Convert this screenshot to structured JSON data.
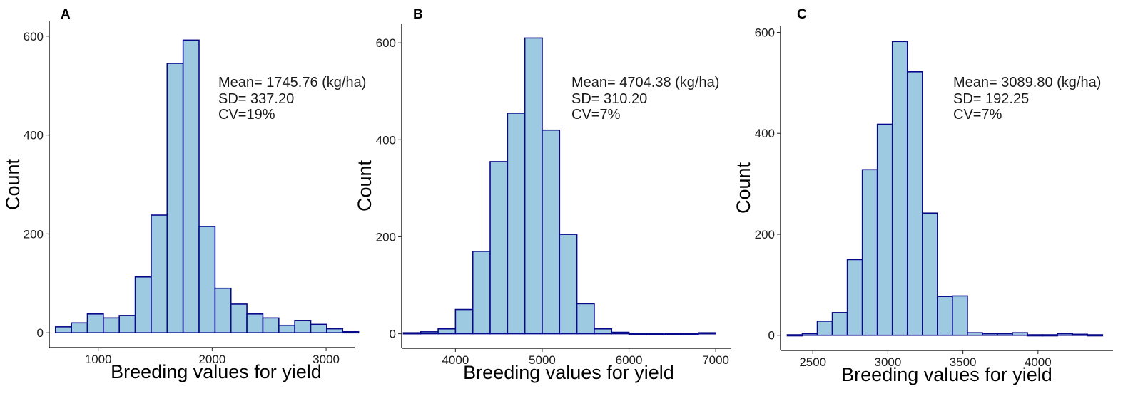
{
  "colors": {
    "bar_fill": "#9ecae1",
    "bar_stroke": "#08088a"
  },
  "chart_data": [
    {
      "type": "bar",
      "panel": "A",
      "xlabel": "Breeding values for yield",
      "ylabel": "Count",
      "annotations": [
        "Mean= 1745.76 (kg/ha)",
        "SD= 337.20",
        "CV=19%"
      ],
      "xlim": [
        570,
        3250
      ],
      "ylim": [
        -30,
        630
      ],
      "xticks": [
        1000,
        2000,
        3000
      ],
      "yticks": [
        0,
        200,
        400,
        600
      ],
      "bin_width": 140,
      "bin_starts": [
        625,
        765,
        905,
        1045,
        1185,
        1325,
        1465,
        1605,
        1745,
        1885,
        2025,
        2165,
        2305,
        2445,
        2585,
        2725,
        2865,
        3005,
        3145
      ],
      "values": [
        12,
        20,
        38,
        30,
        35,
        113,
        238,
        545,
        592,
        215,
        90,
        58,
        38,
        30,
        15,
        25,
        17,
        8,
        2
      ]
    },
    {
      "type": "bar",
      "panel": "B",
      "xlabel": "Breeding values for yield",
      "ylabel": "Count",
      "annotations": [
        "Mean= 4704.38 (kg/ha)",
        "SD= 310.20",
        "CV=7%"
      ],
      "xlim": [
        3380,
        7180
      ],
      "ylim": [
        -30,
        640
      ],
      "xticks": [
        4000,
        5000,
        6000,
        7000
      ],
      "yticks": [
        0,
        200,
        400,
        600
      ],
      "bin_width": 200,
      "bin_starts": [
        3400,
        3600,
        3800,
        4000,
        4200,
        4400,
        4600,
        4800,
        5000,
        5200,
        5400,
        5600,
        5800,
        6000,
        6200,
        6400,
        6600,
        6800
      ],
      "values": [
        2,
        4,
        10,
        50,
        170,
        355,
        455,
        610,
        420,
        205,
        62,
        10,
        3,
        1,
        1,
        0,
        0,
        2
      ]
    },
    {
      "type": "bar",
      "panel": "C",
      "xlabel": "Breeding values for yield",
      "ylabel": "Count",
      "annotations": [
        "Mean= 3089.80 (kg/ha)",
        "SD= 192.25",
        "CV=7%"
      ],
      "xlim": [
        2285,
        4500
      ],
      "ylim": [
        -30,
        612
      ],
      "xticks": [
        2500,
        3000,
        3500,
        4000
      ],
      "yticks": [
        0,
        200,
        400,
        600
      ],
      "bin_width": 100,
      "bin_starts": [
        2330,
        2430,
        2530,
        2630,
        2730,
        2830,
        2930,
        3030,
        3130,
        3230,
        3330,
        3430,
        3530,
        3630,
        3730,
        3830,
        3930,
        4030,
        4130,
        4230,
        4330
      ],
      "values": [
        1,
        3,
        28,
        45,
        150,
        328,
        418,
        582,
        522,
        242,
        77,
        78,
        5,
        3,
        3,
        5,
        1,
        1,
        3,
        2,
        1
      ]
    }
  ]
}
